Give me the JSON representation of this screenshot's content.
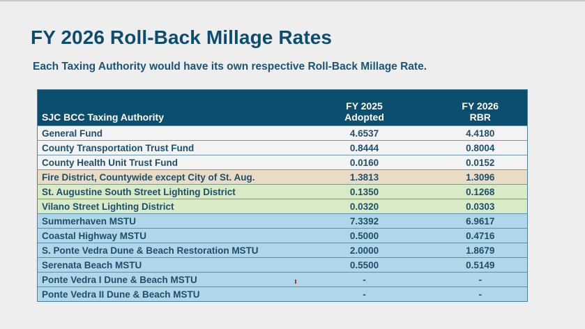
{
  "slide": {
    "title": "FY 2026 Roll-Back Millage Rates",
    "subtitle": "Each Taxing Authority would have its own respective Roll-Back Millage Rate."
  },
  "table": {
    "headers": {
      "authority": "SJC BCC Taxing Authority",
      "adopted_line1": "FY 2025",
      "adopted_line2": "Adopted",
      "rbr_line1": "FY 2026",
      "rbr_line2": "RBR"
    },
    "row_colors": {
      "white": "#F3F3F3",
      "tan": "#EADBC4",
      "green": "#D8EBC6",
      "blue": "#B0D6EA",
      "header": "#0C4E6E"
    },
    "rows": [
      {
        "authority": "General Fund",
        "adopted": "4.6537",
        "rbr": "4.4180",
        "group": "white"
      },
      {
        "authority": "County Transportation Trust Fund",
        "adopted": "0.8444",
        "rbr": "0.8004",
        "group": "white"
      },
      {
        "authority": "County Health Unit Trust Fund",
        "adopted": "0.0160",
        "rbr": "0.0152",
        "group": "white"
      },
      {
        "authority": "Fire District, Countywide except City of St. Aug.",
        "adopted": "1.3813",
        "rbr": "1.3096",
        "group": "tan"
      },
      {
        "authority": "St. Augustine South Street Lighting District",
        "adopted": "0.1350",
        "rbr": "0.1268",
        "group": "green"
      },
      {
        "authority": "Vilano Street Lighting District",
        "adopted": "0.0320",
        "rbr": "0.0303",
        "group": "green"
      },
      {
        "authority": "Summerhaven MSTU",
        "adopted": "7.3392",
        "rbr": "6.9617",
        "group": "blue"
      },
      {
        "authority": "Coastal Highway MSTU",
        "adopted": "0.5000",
        "rbr": "0.4716",
        "group": "blue"
      },
      {
        "authority": "S. Ponte Vedra Dune & Beach Restoration MSTU",
        "adopted": "2.0000",
        "rbr": "1.8679",
        "group": "blue"
      },
      {
        "authority": "Serenata Beach MSTU",
        "adopted": "0.5500",
        "rbr": "0.5149",
        "group": "blue"
      },
      {
        "authority": "Ponte Vedra I Dune & Beach MSTU",
        "adopted": "-",
        "rbr": "-",
        "group": "blue"
      },
      {
        "authority": "Ponte Vedra II Dune & Beach MSTU",
        "adopted": "-",
        "rbr": "-",
        "group": "blue"
      }
    ]
  }
}
